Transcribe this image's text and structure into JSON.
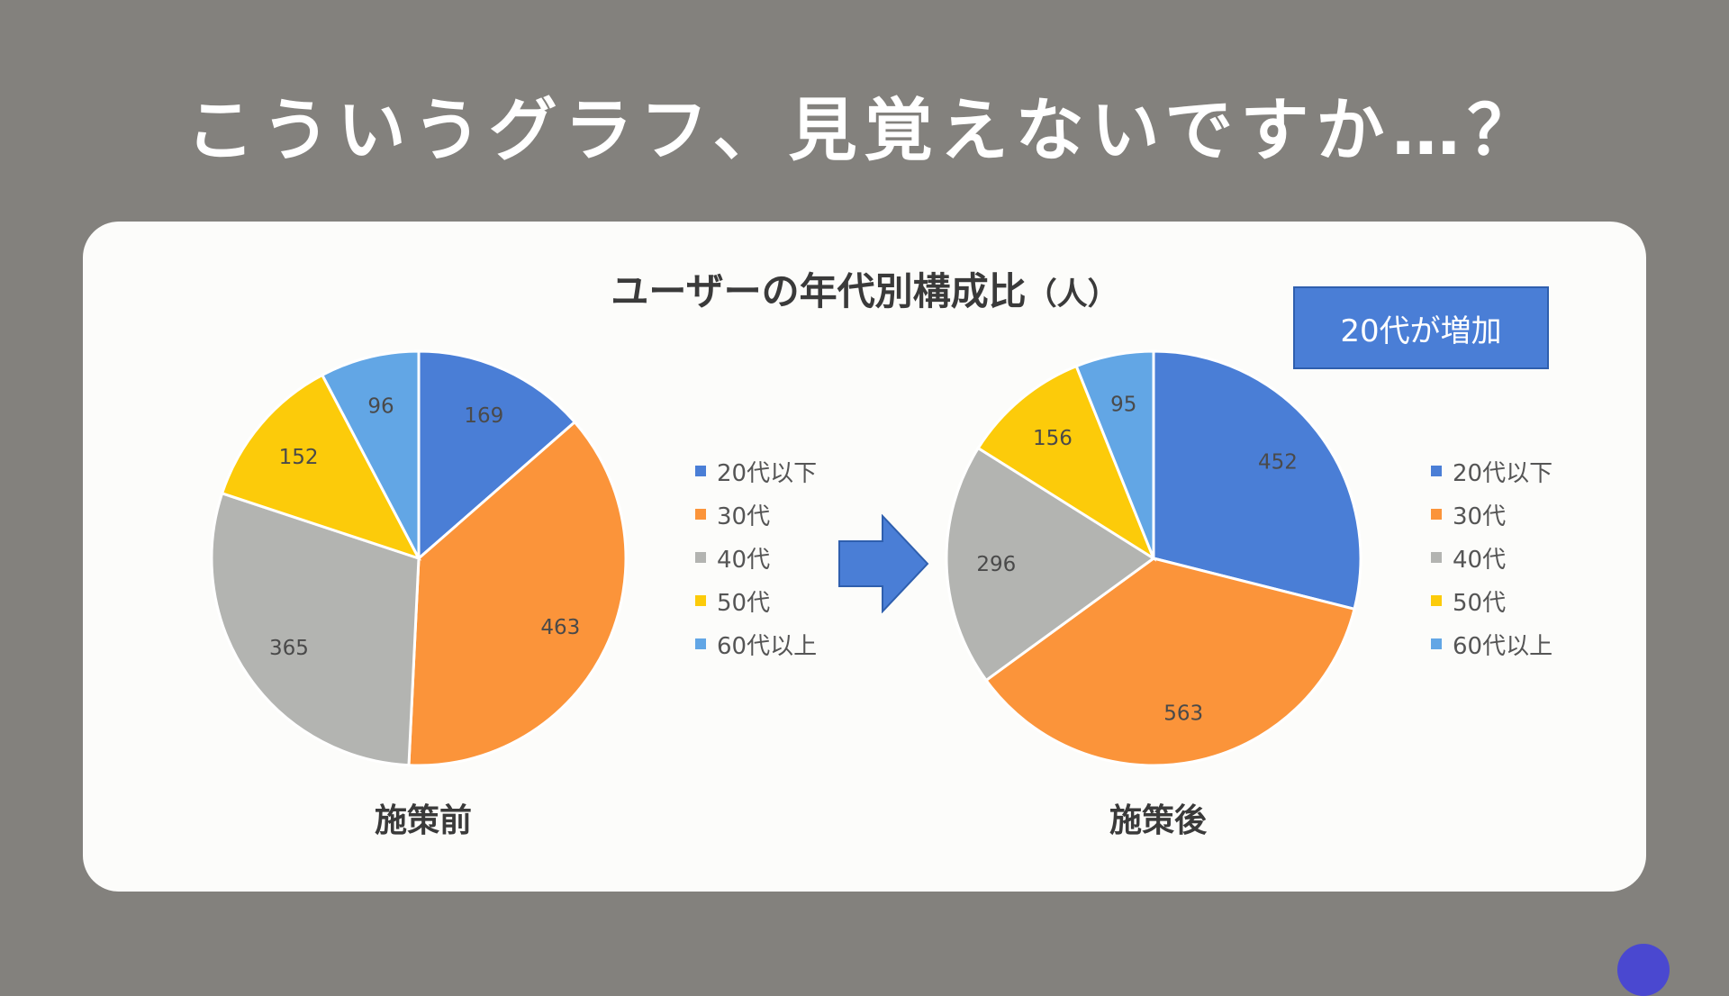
{
  "slide": {
    "title": "こういうグラフ、見覚えないですか…？"
  },
  "chart_title": {
    "main": "ユーザーの年代別構成比",
    "unit": "（人）"
  },
  "callout": {
    "text": "20代が増加",
    "color": "#4a7ed6"
  },
  "colors": [
    "#4a7ed6",
    "#fb943a",
    "#b3b4b1",
    "#fccb0a",
    "#62a6e5"
  ],
  "chart_data": [
    {
      "type": "pie",
      "label": "施策前",
      "categories": [
        "20代以下",
        "30代",
        "40代",
        "50代",
        "60代以上"
      ],
      "values": [
        169,
        463,
        365,
        152,
        96
      ],
      "legend_position": "right",
      "data_labels": true
    },
    {
      "type": "pie",
      "label": "施策後",
      "categories": [
        "20代以下",
        "30代",
        "40代",
        "50代",
        "60代以上"
      ],
      "values": [
        452,
        563,
        296,
        156,
        95
      ],
      "legend_position": "right",
      "data_labels": true
    }
  ]
}
